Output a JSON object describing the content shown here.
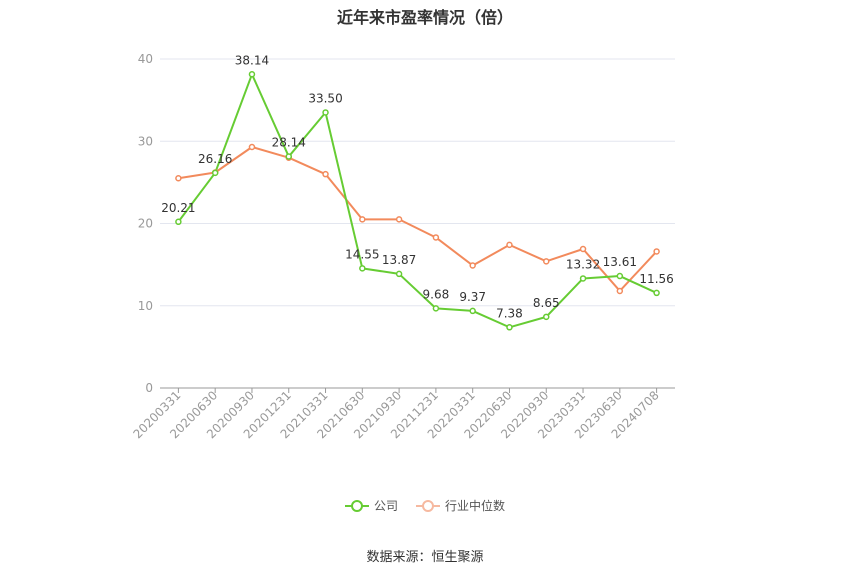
{
  "title": "近年来市盈率情况（倍）",
  "source": "数据来源：恒生聚源",
  "colors": {
    "company": "#66cc33",
    "industry": "#f28a5c",
    "grid": "#e3e6ef",
    "axis": "#999999"
  },
  "chart_data": {
    "type": "line",
    "title": "近年来市盈率情况（倍）",
    "categories": [
      "20200331",
      "20200630",
      "20200930",
      "20201231",
      "20210331",
      "20210630",
      "20210930",
      "20211231",
      "20220331",
      "20220630",
      "20220930",
      "20230331",
      "20230630",
      "20240708"
    ],
    "ylim": [
      0,
      40
    ],
    "yticks": [
      0,
      10,
      20,
      30,
      40
    ],
    "grid": true,
    "legend_position": "bottom",
    "series": [
      {
        "name": "公司",
        "values": [
          20.21,
          26.16,
          38.14,
          28.14,
          33.5,
          14.55,
          13.87,
          9.68,
          9.37,
          7.38,
          8.65,
          13.32,
          13.61,
          11.56
        ],
        "labels": [
          "20.21",
          "26.16",
          "38.14",
          "28.14",
          "33.50",
          "14.55",
          "13.87",
          "9.68",
          "9.37",
          "7.38",
          "8.65",
          "13.32",
          "13.61",
          "11.56"
        ]
      },
      {
        "name": "行业中位数",
        "values": [
          25.5,
          26.2,
          29.3,
          28.0,
          26.0,
          20.5,
          20.5,
          18.3,
          14.9,
          17.4,
          15.4,
          16.9,
          11.8,
          16.6
        ]
      }
    ]
  }
}
